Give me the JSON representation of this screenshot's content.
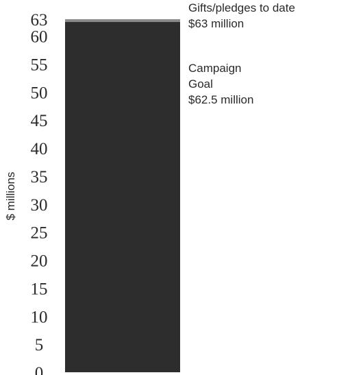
{
  "chart_data": {
    "type": "bar",
    "ylabel": "$ millions",
    "ylim": [
      0,
      63
    ],
    "yticks": [
      0,
      5,
      10,
      15,
      20,
      25,
      30,
      35,
      40,
      45,
      50,
      55,
      60,
      63
    ],
    "series": [
      {
        "name": "Gifts/pledges to date",
        "value": 63,
        "label": "$63 million",
        "color": "#8a8a8a"
      },
      {
        "name": "Campaign Goal",
        "value": 62.5,
        "label": "$62.5 million",
        "color": "#2d2d2d"
      }
    ],
    "annotations": [
      {
        "lines": [
          "Gifts/pledges to date",
          "$63 million"
        ]
      },
      {
        "lines": [
          "Campaign",
          "Goal",
          "$62.5 million"
        ]
      }
    ]
  }
}
